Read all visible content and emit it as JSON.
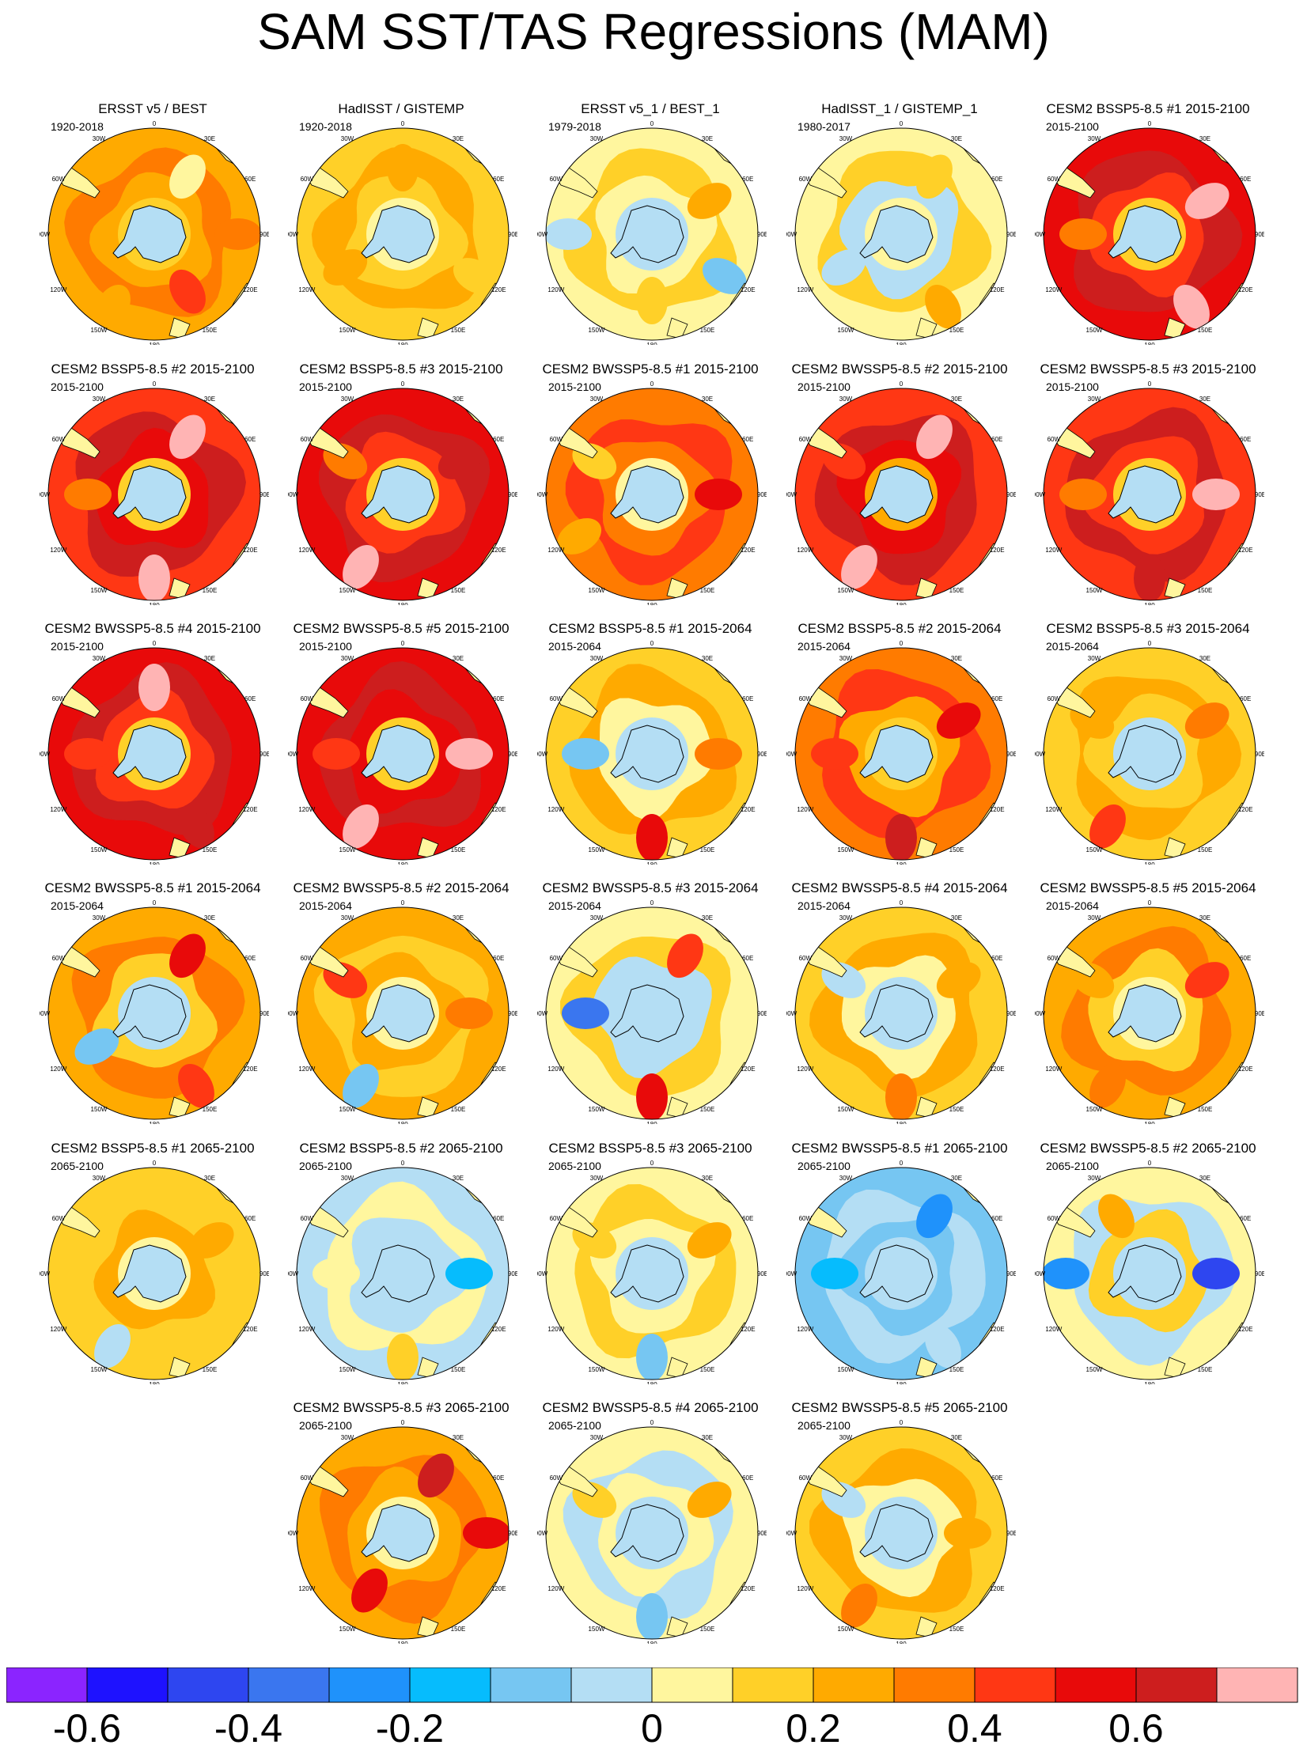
{
  "title": "SAM SST/TAS Regressions (MAM)",
  "longitude_labels": [
    "0",
    "30E",
    "60E",
    "90E",
    "120E",
    "150E",
    "180",
    "150W",
    "120W",
    "90W",
    "60W",
    "30W"
  ],
  "colors": {
    "levels": [
      "#8b24ff",
      "#1e12ff",
      "#2e46f0",
      "#3a76ef",
      "#1f92fb",
      "#06bcfd",
      "#76c6f2",
      "#b4def4",
      "#fff69e",
      "#ffd028",
      "#ffaa00",
      "#ff7b00",
      "#ff3714",
      "#e80a0a",
      "#cd1e1e",
      "#ffb4b4"
    ],
    "antarctica": "#b4def4",
    "coast": "#000000"
  },
  "colorbar": {
    "labels": [
      "-0.6",
      "-0.4",
      "-0.2",
      "0",
      "0.2",
      "0.4",
      "0.6"
    ],
    "label_bin_edges": [
      1,
      3,
      5,
      8,
      10,
      12,
      14
    ]
  },
  "panels": [
    {
      "title": "ERSST v5 / BEST",
      "years": "1920-2018",
      "bg": 10,
      "ring": 11,
      "mid": 10,
      "inner": 9,
      "blobs": [
        [
          1,
          8
        ],
        [
          3,
          11
        ],
        [
          5,
          12
        ],
        [
          7,
          10
        ]
      ]
    },
    {
      "title": "HadISST / GISTEMP",
      "years": "1920-2018",
      "bg": 9,
      "ring": 10,
      "mid": 9,
      "inner": 8,
      "blobs": [
        [
          0,
          10
        ],
        [
          4,
          9
        ],
        [
          8,
          10
        ]
      ]
    },
    {
      "title": "ERSST v5_1 / BEST_1",
      "years": "1979-2018",
      "bg": 8,
      "ring": 9,
      "mid": 8,
      "inner": 7,
      "blobs": [
        [
          2,
          10
        ],
        [
          4,
          6
        ],
        [
          6,
          9
        ],
        [
          9,
          7
        ]
      ]
    },
    {
      "title": "HadISST_1 / GISTEMP_1",
      "years": "1980-2017",
      "bg": 8,
      "ring": 9,
      "mid": 7,
      "inner": 8,
      "blobs": [
        [
          1,
          9
        ],
        [
          5,
          10
        ],
        [
          8,
          7
        ]
      ]
    },
    {
      "title": "CESM2 BSSP5-8.5 #1 2015-2100",
      "years": "2015-2100",
      "bg": 13,
      "ring": 14,
      "mid": 12,
      "inner": 9,
      "blobs": [
        [
          2,
          15
        ],
        [
          5,
          15
        ],
        [
          9,
          11
        ]
      ]
    },
    {
      "title": "CESM2 BSSP5-8.5 #2 2015-2100",
      "years": "2015-2100",
      "bg": 12,
      "ring": 14,
      "mid": 13,
      "inner": 9,
      "blobs": [
        [
          1,
          15
        ],
        [
          6,
          15
        ],
        [
          9,
          11
        ]
      ]
    },
    {
      "title": "CESM2 BSSP5-8.5 #3 2015-2100",
      "years": "2015-2100",
      "bg": 13,
      "ring": 14,
      "mid": 12,
      "inner": 9,
      "blobs": [
        [
          2,
          14
        ],
        [
          7,
          15
        ],
        [
          10,
          11
        ]
      ]
    },
    {
      "title": "CESM2 BWSSP5-8.5 #1 2015-2100",
      "years": "2015-2100",
      "bg": 11,
      "ring": 12,
      "mid": 11,
      "inner": 8,
      "blobs": [
        [
          3,
          13
        ],
        [
          8,
          10
        ],
        [
          10,
          9
        ]
      ]
    },
    {
      "title": "CESM2 BWSSP5-8.5 #2 2015-2100",
      "years": "2015-2100",
      "bg": 12,
      "ring": 14,
      "mid": 13,
      "inner": 10,
      "blobs": [
        [
          1,
          15
        ],
        [
          7,
          15
        ],
        [
          10,
          12
        ]
      ]
    },
    {
      "title": "CESM2 BWSSP5-8.5 #3 2015-2100",
      "years": "2015-2100",
      "bg": 12,
      "ring": 14,
      "mid": 12,
      "inner": 9,
      "blobs": [
        [
          3,
          15
        ],
        [
          6,
          14
        ],
        [
          9,
          11
        ]
      ]
    },
    {
      "title": "CESM2 BWSSP5-8.5 #4 2015-2100",
      "years": "2015-2100",
      "bg": 13,
      "ring": 14,
      "mid": 12,
      "inner": 9,
      "blobs": [
        [
          0,
          15
        ],
        [
          5,
          14
        ],
        [
          9,
          12
        ]
      ]
    },
    {
      "title": "CESM2 BWSSP5-8.5 #5 2015-2100",
      "years": "2015-2100",
      "bg": 13,
      "ring": 14,
      "mid": 13,
      "inner": 9,
      "blobs": [
        [
          3,
          15
        ],
        [
          7,
          15
        ],
        [
          9,
          12
        ]
      ]
    },
    {
      "title": "CESM2 BSSP5-8.5 #1 2015-2064",
      "years": "2015-2064",
      "bg": 9,
      "ring": 10,
      "mid": 8,
      "inner": 7,
      "blobs": [
        [
          3,
          11
        ],
        [
          6,
          13
        ],
        [
          9,
          6
        ]
      ]
    },
    {
      "title": "CESM2 BSSP5-8.5 #2 2015-2064",
      "years": "2015-2064",
      "bg": 11,
      "ring": 12,
      "mid": 10,
      "inner": 9,
      "blobs": [
        [
          2,
          13
        ],
        [
          6,
          14
        ],
        [
          9,
          12
        ]
      ]
    },
    {
      "title": "CESM2 BSSP5-8.5 #3 2015-2064",
      "years": "2015-2064",
      "bg": 9,
      "ring": 10,
      "mid": 9,
      "inner": 7,
      "blobs": [
        [
          2,
          11
        ],
        [
          7,
          12
        ],
        [
          10,
          10
        ]
      ]
    },
    {
      "title": "CESM2 BWSSP5-8.5 #1 2015-2064",
      "years": "2015-2064",
      "bg": 10,
      "ring": 11,
      "mid": 9,
      "inner": 7,
      "blobs": [
        [
          1,
          13
        ],
        [
          5,
          12
        ],
        [
          8,
          6
        ]
      ]
    },
    {
      "title": "CESM2 BWSSP5-8.5 #2 2015-2064",
      "years": "2015-2064",
      "bg": 10,
      "ring": 9,
      "mid": 10,
      "inner": 8,
      "blobs": [
        [
          3,
          11
        ],
        [
          7,
          6
        ],
        [
          10,
          12
        ]
      ]
    },
    {
      "title": "CESM2 BWSSP5-8.5 #3 2015-2064",
      "years": "2015-2064",
      "bg": 8,
      "ring": 9,
      "mid": 7,
      "inner": 7,
      "blobs": [
        [
          1,
          12
        ],
        [
          6,
          13
        ],
        [
          9,
          3
        ]
      ]
    },
    {
      "title": "CESM2 BWSSP5-8.5 #4 2015-2064",
      "years": "2015-2064",
      "bg": 9,
      "ring": 10,
      "mid": 8,
      "inner": 7,
      "blobs": [
        [
          2,
          10
        ],
        [
          6,
          11
        ],
        [
          10,
          7
        ]
      ]
    },
    {
      "title": "CESM2 BWSSP5-8.5 #5 2015-2064",
      "years": "2015-2064",
      "bg": 10,
      "ring": 11,
      "mid": 9,
      "inner": 8,
      "blobs": [
        [
          2,
          12
        ],
        [
          7,
          11
        ],
        [
          10,
          10
        ]
      ]
    },
    {
      "title": "CESM2 BSSP5-8.5 #1 2065-2100",
      "years": "2065-2100",
      "bg": 9,
      "ring": 9,
      "mid": 10,
      "inner": 8,
      "blobs": [
        [
          2,
          10
        ],
        [
          7,
          7
        ]
      ]
    },
    {
      "title": "CESM2 BSSP5-8.5 #2 2065-2100",
      "years": "2065-2100",
      "bg": 7,
      "ring": 8,
      "mid": 7,
      "inner": 7,
      "blobs": [
        [
          3,
          5
        ],
        [
          6,
          9
        ],
        [
          9,
          8
        ]
      ]
    },
    {
      "title": "CESM2 BSSP5-8.5 #3 2065-2100",
      "years": "2065-2100",
      "bg": 8,
      "ring": 9,
      "mid": 8,
      "inner": 7,
      "blobs": [
        [
          2,
          10
        ],
        [
          6,
          6
        ],
        [
          10,
          9
        ]
      ]
    },
    {
      "title": "CESM2 BWSSP5-8.5 #1 2065-2100",
      "years": "2065-2100",
      "bg": 6,
      "ring": 7,
      "mid": 6,
      "inner": 7,
      "blobs": [
        [
          1,
          4
        ],
        [
          5,
          7
        ],
        [
          9,
          5
        ]
      ]
    },
    {
      "title": "CESM2 BWSSP5-8.5 #2 2065-2100",
      "years": "2065-2100",
      "bg": 8,
      "ring": 7,
      "mid": 9,
      "inner": 7,
      "blobs": [
        [
          3,
          2
        ],
        [
          9,
          4
        ],
        [
          11,
          10
        ]
      ]
    },
    {
      "title": "CESM2 BWSSP5-8.5 #3 2065-2100",
      "years": "2065-2100",
      "bg": 10,
      "ring": 11,
      "mid": 10,
      "inner": 8,
      "blobs": [
        [
          1,
          14
        ],
        [
          3,
          13
        ],
        [
          7,
          13
        ]
      ]
    },
    {
      "title": "CESM2 BWSSP5-8.5 #4 2065-2100",
      "years": "2065-2100",
      "bg": 8,
      "ring": 7,
      "mid": 8,
      "inner": 7,
      "blobs": [
        [
          2,
          10
        ],
        [
          6,
          6
        ],
        [
          10,
          9
        ]
      ]
    },
    {
      "title": "CESM2 BWSSP5-8.5 #5 2065-2100",
      "years": "2065-2100",
      "bg": 9,
      "ring": 10,
      "mid": 8,
      "inner": 7,
      "blobs": [
        [
          3,
          10
        ],
        [
          7,
          11
        ],
        [
          10,
          7
        ]
      ]
    }
  ]
}
